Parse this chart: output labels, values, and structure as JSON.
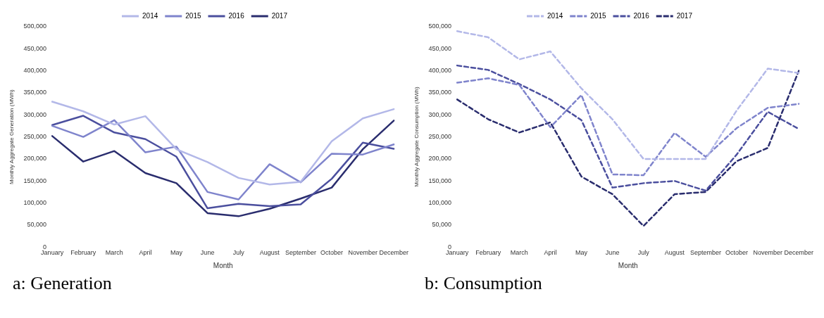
{
  "chart_data": [
    {
      "type": "line",
      "xlabel": "Month",
      "ylabel": "Monthly Aggregate Generation (MWh)",
      "annotations": [
        "a: Generation"
      ],
      "categories": [
        "January",
        "February",
        "March",
        "April",
        "May",
        "June",
        "July",
        "August",
        "September",
        "October",
        "November",
        "December"
      ],
      "ylim": [
        0,
        500000
      ],
      "yticks": [
        {
          "value": 0,
          "label": "0"
        },
        {
          "value": 50000,
          "label": "50,000"
        },
        {
          "value": 100000,
          "label": "100,000"
        },
        {
          "value": 150000,
          "label": "150,000"
        },
        {
          "value": 200000,
          "label": "200,000"
        },
        {
          "value": 250000,
          "label": "250,000"
        },
        {
          "value": 300000,
          "label": "300,000"
        },
        {
          "value": 350000,
          "label": "350,000"
        },
        {
          "value": 400000,
          "label": "400,000"
        },
        {
          "value": 450000,
          "label": "450,000"
        },
        {
          "value": 500000,
          "label": "500,000"
        }
      ],
      "legend": "top",
      "grid": false,
      "marker": "none",
      "line_style": "solid",
      "series": [
        {
          "name": "2014",
          "color": "#b3b8e8",
          "values": [
            330000,
            308000,
            278000,
            297000,
            222000,
            193000,
            157000,
            142000,
            148000,
            240000,
            292000,
            313000
          ]
        },
        {
          "name": "2015",
          "color": "#7f84cc",
          "values": [
            275000,
            250000,
            288000,
            215000,
            228000,
            125000,
            108000,
            188000,
            147000,
            212000,
            210000,
            233000
          ]
        },
        {
          "name": "2016",
          "color": "#4b4f9e",
          "values": [
            277000,
            298000,
            260000,
            245000,
            205000,
            88000,
            98000,
            93000,
            97000,
            155000,
            237000,
            223000
          ]
        },
        {
          "name": "2017",
          "color": "#2a2d6e",
          "values": [
            252000,
            194000,
            218000,
            168000,
            145000,
            77000,
            70000,
            87000,
            110000,
            135000,
            222000,
            287000
          ]
        }
      ]
    },
    {
      "type": "line",
      "xlabel": "Month",
      "ylabel": "Monthly Aggregate Consumption (MWh)",
      "annotations": [
        "b: Consumption"
      ],
      "categories": [
        "January",
        "February",
        "March",
        "April",
        "May",
        "June",
        "July",
        "August",
        "September",
        "October",
        "November",
        "December"
      ],
      "ylim": [
        0,
        500000
      ],
      "yticks": [
        {
          "value": 0,
          "label": "0"
        },
        {
          "value": 50000,
          "label": "50,000"
        },
        {
          "value": 100000,
          "label": "100,000"
        },
        {
          "value": 150000,
          "label": "150,000"
        },
        {
          "value": 200000,
          "label": "200,000"
        },
        {
          "value": 250000,
          "label": "250,000"
        },
        {
          "value": 300000,
          "label": "300,000"
        },
        {
          "value": 350000,
          "label": "350,000"
        },
        {
          "value": 400000,
          "label": "400,000"
        },
        {
          "value": 450000,
          "label": "450,000"
        },
        {
          "value": 500000,
          "label": "500,000"
        }
      ],
      "legend": "top",
      "grid": false,
      "marker": "none",
      "line_style": "dashed",
      "series": [
        {
          "name": "2014",
          "color": "#b3b8e8",
          "values": [
            490000,
            476000,
            426000,
            444000,
            360000,
            290000,
            200000,
            200000,
            200000,
            310000,
            405000,
            395000
          ]
        },
        {
          "name": "2015",
          "color": "#7f84cc",
          "values": [
            373000,
            383000,
            368000,
            272000,
            345000,
            165000,
            163000,
            259000,
            205000,
            270000,
            316000,
            325000
          ]
        },
        {
          "name": "2016",
          "color": "#4b4f9e",
          "values": [
            412000,
            402000,
            370000,
            335000,
            288000,
            135000,
            145000,
            150000,
            128000,
            210000,
            307000,
            268000
          ]
        },
        {
          "name": "2017",
          "color": "#2a2d6e",
          "values": [
            335000,
            290000,
            260000,
            283000,
            160000,
            120000,
            48000,
            120000,
            125000,
            195000,
            225000,
            400000
          ]
        }
      ]
    }
  ]
}
